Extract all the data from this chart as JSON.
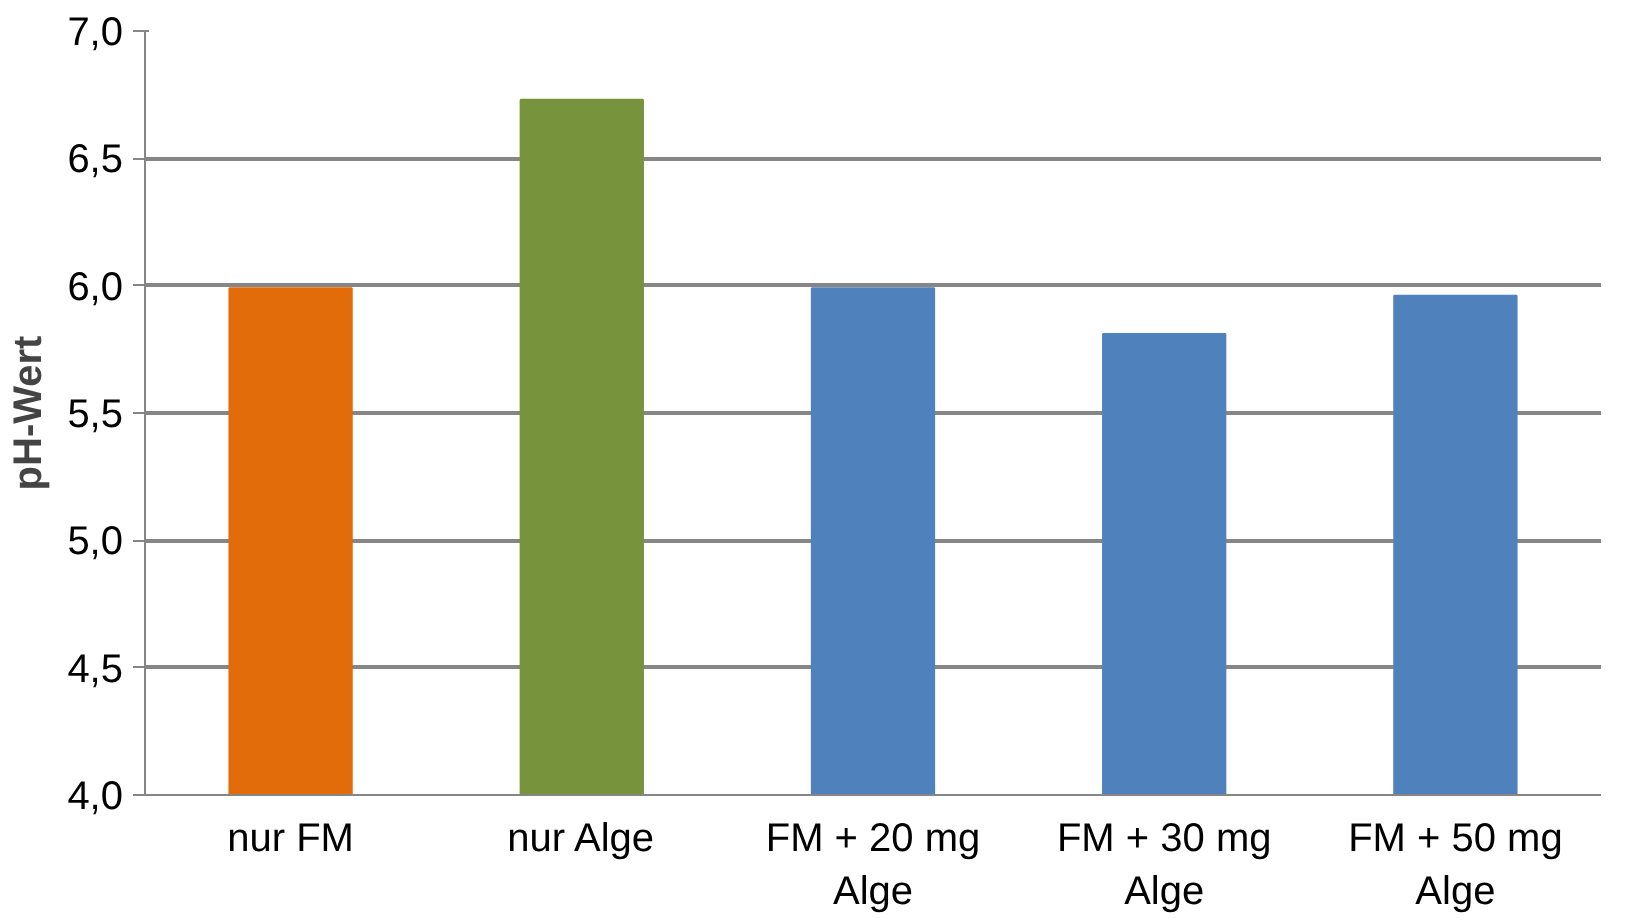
{
  "chart_data": {
    "type": "bar",
    "ylabel": "pH-Wert",
    "categories": [
      "nur FM",
      "nur Alge",
      "FM + 20 mg Alge",
      "FM + 30 mg Alge",
      "FM + 50 mg Alge"
    ],
    "values": [
      5.99,
      6.73,
      5.99,
      5.81,
      5.96
    ],
    "colors": [
      "#e36c0a",
      "#77933c",
      "#4f81bd",
      "#4f81bd",
      "#4f81bd"
    ],
    "ylim": [
      4.0,
      7.0
    ],
    "yticks": [
      {
        "value": 4.0,
        "label": "4,0"
      },
      {
        "value": 4.5,
        "label": "4,5"
      },
      {
        "value": 5.0,
        "label": "5,0"
      },
      {
        "value": 5.5,
        "label": "5,5"
      },
      {
        "value": 6.0,
        "label": "6,0"
      },
      {
        "value": 6.5,
        "label": "6,5"
      },
      {
        "value": 7.0,
        "label": "7,0"
      }
    ],
    "grid": "y"
  }
}
